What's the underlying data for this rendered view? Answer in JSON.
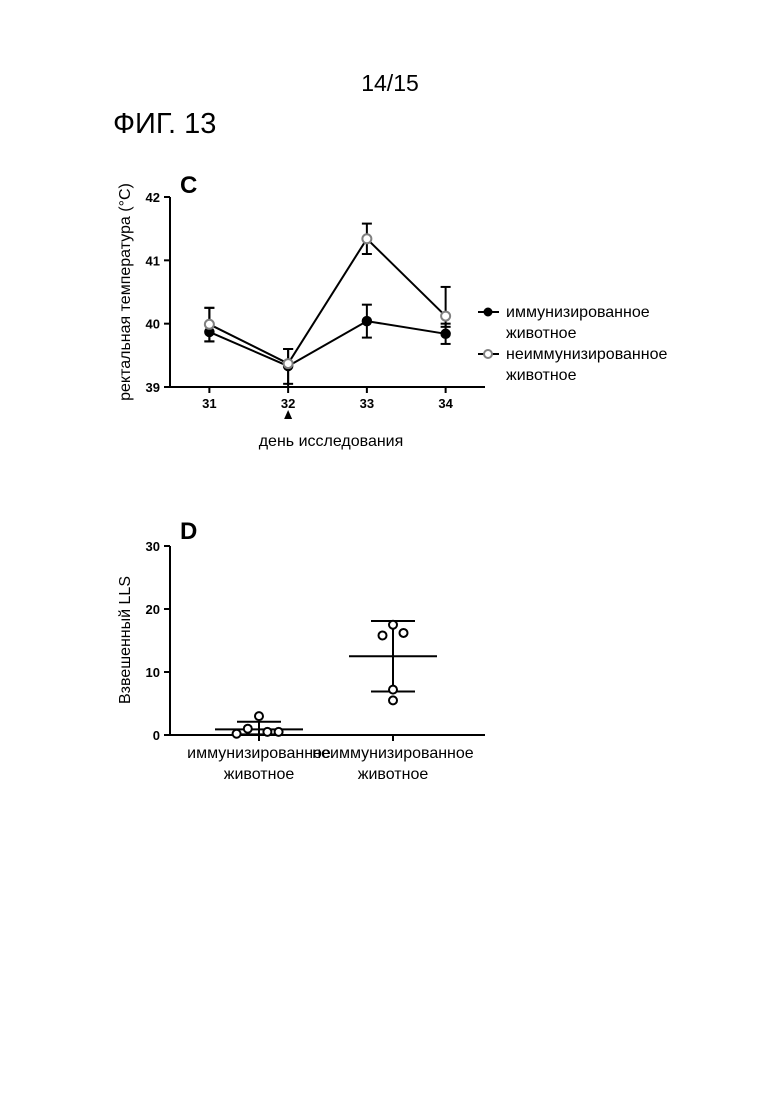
{
  "page_number": "14/15",
  "figure_title": "ФИГ. 13",
  "chart_data": [
    {
      "type": "line",
      "panel_label": "C",
      "xlabel": "день исследования",
      "ylabel": "ректальная температура (°C)",
      "x": [
        31,
        32,
        33,
        34
      ],
      "xticks": [
        "31",
        "32",
        "33",
        "34"
      ],
      "xlim": [
        30.5,
        34.5
      ],
      "ylim": [
        39,
        42
      ],
      "yticks": [
        "39",
        "40",
        "41",
        "42"
      ],
      "marker_below_x": 32,
      "legend_position": "right",
      "series": [
        {
          "name": "иммунизированное животное",
          "name_lines": [
            "иммунизированное",
            "животное"
          ],
          "marker": "filled-circle",
          "color": "#000000",
          "values": [
            39.87,
            39.33,
            40.04,
            39.84
          ],
          "err_low": [
            39.72,
            39.05,
            39.78,
            39.68
          ],
          "err_high": [
            40.25,
            39.6,
            40.3,
            40.0
          ]
        },
        {
          "name": "неиммунизированное животное",
          "name_lines": [
            "неиммунизированное",
            "животное"
          ],
          "marker": "open-circle",
          "color": "#808080",
          "values": [
            39.99,
            39.37,
            41.34,
            40.12
          ],
          "err_low": [
            39.72,
            39.0,
            41.1,
            39.95
          ],
          "err_high": [
            40.25,
            39.6,
            41.58,
            40.58
          ]
        }
      ]
    },
    {
      "type": "scatter",
      "panel_label": "D",
      "ylabel": "Взвешенный LLS",
      "ylim": [
        0,
        30
      ],
      "yticks": [
        "0",
        "10",
        "20",
        "30"
      ],
      "groups": [
        {
          "label_lines": [
            "иммунизированное",
            "животное"
          ],
          "points": [
            0.2,
            1.0,
            3.0,
            0.5,
            0.5
          ],
          "point_x": [
            -0.32,
            -0.16,
            0.0,
            0.12,
            0.28
          ],
          "mean": 0.9,
          "sd_low": 0.1,
          "sd_high": 2.1
        },
        {
          "label_lines": [
            "неиммунизированное",
            "животное"
          ],
          "points": [
            17.5,
            15.8,
            16.2,
            7.2,
            5.5
          ],
          "point_x": [
            0.0,
            -0.15,
            0.15,
            0.0,
            0.0
          ],
          "mean": 12.5,
          "sd_low": 6.9,
          "sd_high": 18.1
        }
      ]
    }
  ]
}
